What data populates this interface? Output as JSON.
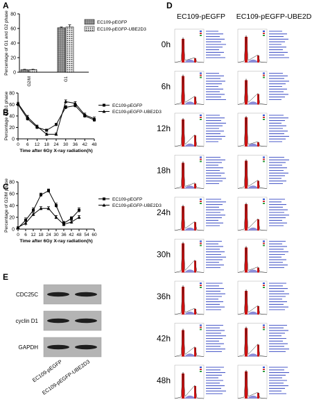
{
  "panels": {
    "A": "A",
    "B": "B",
    "C": "C",
    "D": "D",
    "E": "E"
  },
  "chart_data": [
    {
      "panel": "A",
      "type": "bar",
      "ylabel": "Percentage of G1 and G2 phase",
      "ylim": [
        0,
        80
      ],
      "yticks": [
        0,
        20,
        40,
        60,
        80
      ],
      "categories": [
        "G2/M",
        "G1"
      ],
      "series": [
        {
          "name": "EC109-pEGFP",
          "values": [
            3.5,
            61
          ],
          "errors": [
            0.5,
            1
          ],
          "pattern": "grid"
        },
        {
          "name": "EC109-pEGFP-UBE2D3",
          "values": [
            3.5,
            62
          ],
          "errors": [
            0.5,
            3
          ],
          "pattern": "dots"
        }
      ],
      "legend": "top"
    },
    {
      "panel": "B",
      "type": "line",
      "ylabel": "Percentage of G1 phase",
      "xlabel": "Time after 6Gy X-ray radiation(h)",
      "xlim": [
        0,
        48
      ],
      "ylim": [
        0,
        80
      ],
      "xticks": [
        0,
        6,
        12,
        18,
        24,
        30,
        36,
        42,
        48
      ],
      "yticks": [
        0,
        20,
        40,
        60,
        80
      ],
      "x": [
        0,
        6,
        12,
        18,
        24,
        30,
        36,
        42,
        48
      ],
      "series": [
        {
          "name": "EC109-pEGFP",
          "marker": "square",
          "values": [
            60,
            35,
            20,
            15,
            25,
            55,
            58,
            40,
            33
          ],
          "errors": [
            2,
            3,
            2,
            2,
            2,
            3,
            3,
            3,
            3
          ]
        },
        {
          "name": "EC109-pEGFP-UBE2D3",
          "marker": "triangle",
          "values": [
            62,
            38,
            22,
            8,
            8,
            65,
            62,
            42,
            35
          ],
          "errors": [
            2,
            3,
            2,
            2,
            2,
            3,
            3,
            3,
            3
          ]
        }
      ],
      "legend": "top-right"
    },
    {
      "panel": "C",
      "type": "line",
      "ylabel": "Percentage of G2/M phase",
      "xlabel": "Time after 6Gy X-ray radiation(h)",
      "xlim": [
        0,
        60
      ],
      "ylim": [
        0,
        80
      ],
      "xticks": [
        0,
        6,
        12,
        18,
        24,
        30,
        36,
        42,
        48,
        54,
        60
      ],
      "yticks": [
        0,
        20,
        40,
        60,
        80
      ],
      "x": [
        0,
        6,
        12,
        18,
        24,
        30,
        36,
        42,
        48
      ],
      "series": [
        {
          "name": "EC109-pEGFP",
          "marker": "square",
          "values": [
            2,
            15,
            32,
            58,
            65,
            40,
            10,
            18,
            32
          ],
          "errors": [
            1,
            4,
            4,
            3,
            3,
            4,
            3,
            3,
            4
          ]
        },
        {
          "name": "EC109-pEGFP-UBE2D3",
          "marker": "triangle",
          "values": [
            3,
            10,
            25,
            35,
            35,
            20,
            8,
            12,
            20
          ],
          "errors": [
            1,
            4,
            3,
            3,
            3,
            3,
            3,
            3,
            3
          ]
        }
      ],
      "legend": "top-right"
    }
  ],
  "flow": {
    "col1_title": "EC109-pEGFP",
    "col2_title": "EC109-pEGFP-UBE2D3",
    "time_labels": [
      "0h",
      "6h",
      "12h",
      "18h",
      "24h",
      "30h",
      "36h",
      "42h",
      "48h"
    ]
  },
  "western": {
    "bands": [
      "CDC25C",
      "cyclin D1",
      "GAPDH"
    ],
    "lanes": [
      "EC109-pEGFP",
      "EC109-pEGFP-UBE2D3"
    ]
  }
}
